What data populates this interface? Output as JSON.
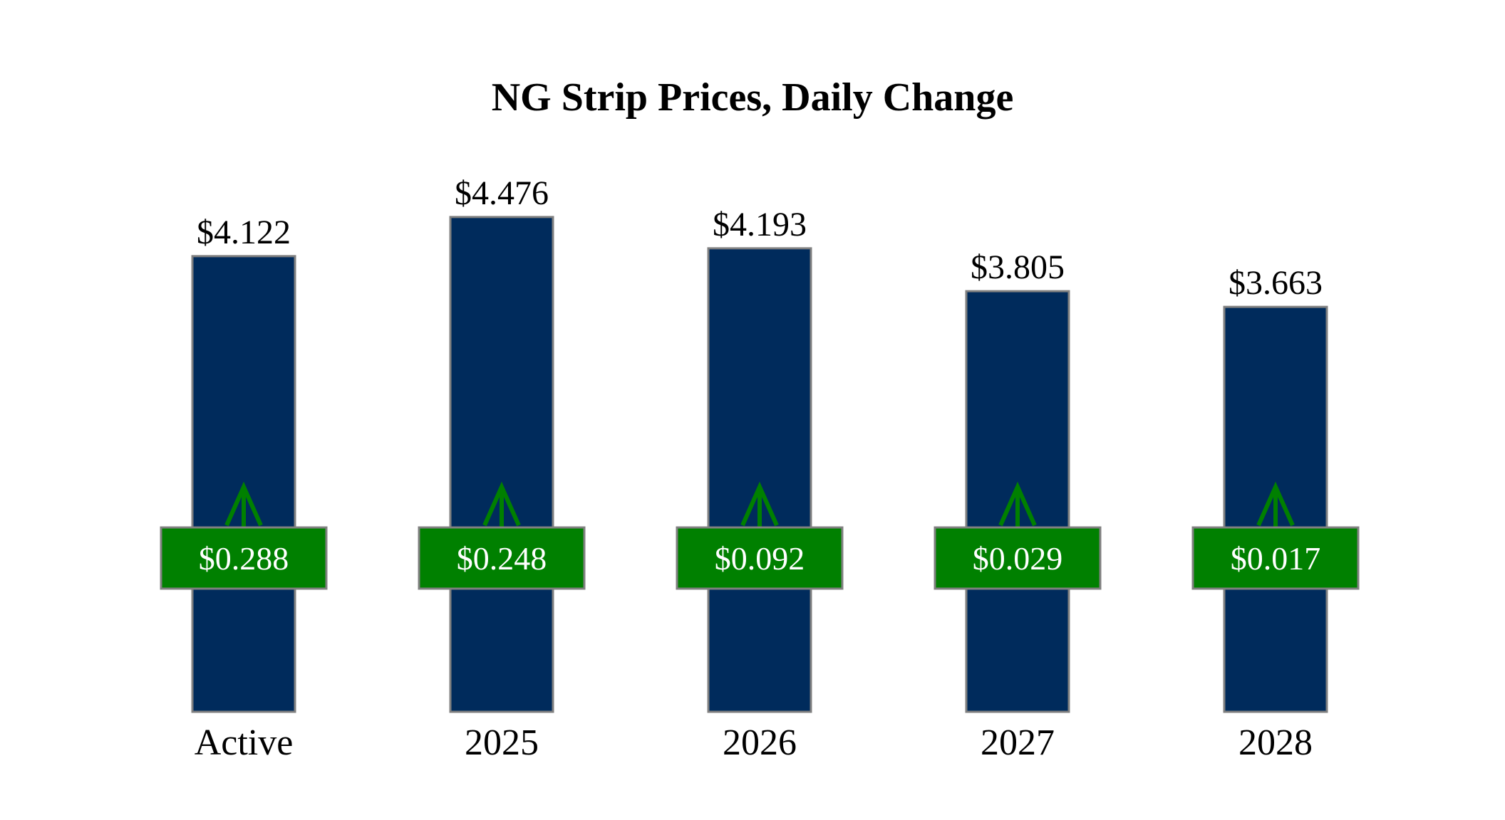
{
  "chart_data": {
    "type": "bar",
    "title": "NG Strip Prices, Daily Change",
    "categories": [
      "Active",
      "2025",
      "2026",
      "2027",
      "2028"
    ],
    "values": [
      4.122,
      4.476,
      4.193,
      3.805,
      3.663
    ],
    "value_labels": [
      "$4.122",
      "$4.476",
      "$4.193",
      "$3.805",
      "$3.663"
    ],
    "changes": [
      0.288,
      0.248,
      0.092,
      0.029,
      0.017
    ],
    "change_labels": [
      "$0.288",
      "$0.248",
      "$0.092",
      "$0.029",
      "$0.017"
    ],
    "change_direction": [
      "up",
      "up",
      "up",
      "up",
      "up"
    ],
    "xlabel": "",
    "ylabel": "",
    "grid": false,
    "legend": "none",
    "colors": {
      "bar": "#002b5c",
      "bar_border": "#808080",
      "change_box": "#008000",
      "change_box_border": "#808080",
      "arrow": "#008000",
      "change_text": "#ffffff"
    }
  }
}
